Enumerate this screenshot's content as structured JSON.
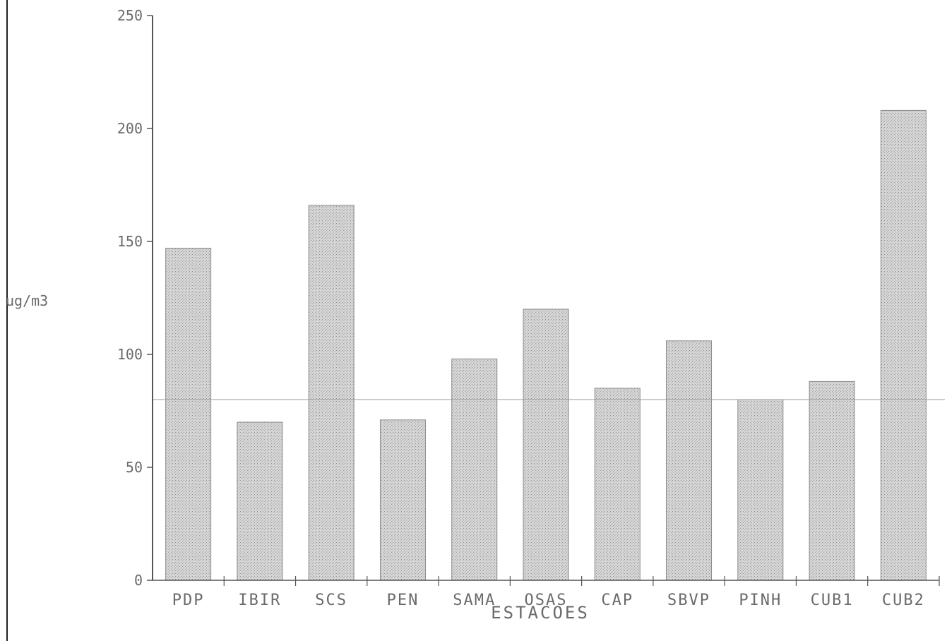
{
  "chart_data": {
    "type": "bar",
    "title": "",
    "xlabel": "ESTACOES",
    "ylabel": "ug/m3",
    "ylim": [
      0,
      250
    ],
    "y_ticks": [
      0,
      50,
      100,
      150,
      200,
      250
    ],
    "grid": false,
    "reference_line": 80,
    "categories": [
      "PDP",
      "IBIR",
      "SCS",
      "PEN",
      "SAMA",
      "OSAS",
      "CAP",
      "SBVP",
      "PINH",
      "CUB1",
      "CUB2"
    ],
    "values": [
      147,
      70,
      166,
      71,
      98,
      120,
      85,
      106,
      80,
      88,
      208
    ],
    "colors": {
      "bar": "#c4c4c4",
      "bar_edge": "#8a8a8a",
      "axis": "#555555",
      "text": "#6a6a6a",
      "reference_line": "#9a9a9a"
    }
  }
}
